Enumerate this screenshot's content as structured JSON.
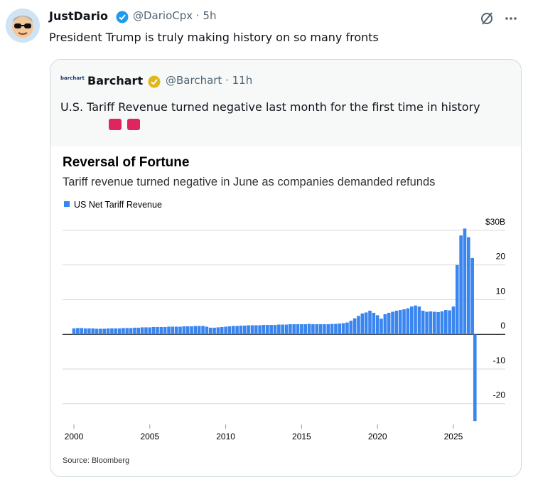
{
  "tweet": {
    "name": "JustDario",
    "handle_time": "@DarioCpx · 5h",
    "text": "President Trump is truly making history on so many fronts"
  },
  "quote": {
    "logo": "barchart",
    "name": "Barchart",
    "handle_time": "@Barchart · 11h",
    "text": "U.S. Tariff Revenue turned negative last month for the first time in history"
  },
  "chart_data": {
    "type": "bar",
    "title": "Reversal of Fortune",
    "subtitle": "Tariff revenue turned negative in June as companies demanded refunds",
    "source": "Source: Bloomberg",
    "x": [
      2000,
      2000.25,
      2000.5,
      2000.75,
      2001,
      2001.25,
      2001.5,
      2001.75,
      2002,
      2002.25,
      2002.5,
      2002.75,
      2003,
      2003.25,
      2003.5,
      2003.75,
      2004,
      2004.25,
      2004.5,
      2004.75,
      2005,
      2005.25,
      2005.5,
      2005.75,
      2006,
      2006.25,
      2006.5,
      2006.75,
      2007,
      2007.25,
      2007.5,
      2007.75,
      2008,
      2008.25,
      2008.5,
      2008.75,
      2009,
      2009.25,
      2009.5,
      2009.75,
      2010,
      2010.25,
      2010.5,
      2010.75,
      2011,
      2011.25,
      2011.5,
      2011.75,
      2012,
      2012.25,
      2012.5,
      2012.75,
      2013,
      2013.25,
      2013.5,
      2013.75,
      2014,
      2014.25,
      2014.5,
      2014.75,
      2015,
      2015.25,
      2015.5,
      2015.75,
      2016,
      2016.25,
      2016.5,
      2016.75,
      2017,
      2017.25,
      2017.5,
      2017.75,
      2018,
      2018.25,
      2018.5,
      2018.75,
      2019,
      2019.25,
      2019.5,
      2019.75,
      2020,
      2020.25,
      2020.5,
      2020.75,
      2021,
      2021.25,
      2021.5,
      2021.75,
      2022,
      2022.25,
      2022.5,
      2022.75,
      2023,
      2023.25,
      2023.5,
      2023.75,
      2024,
      2024.25,
      2024.5,
      2024.75,
      2025,
      2025.25,
      2025.5,
      2025.75,
      2026,
      2026.25,
      2026.42
    ],
    "series": [
      {
        "name": "US Net Tariff Revenue",
        "color": "#3a86f0",
        "values": [
          1.7,
          1.8,
          1.8,
          1.7,
          1.7,
          1.7,
          1.6,
          1.6,
          1.6,
          1.7,
          1.7,
          1.7,
          1.7,
          1.8,
          1.8,
          1.8,
          1.9,
          1.9,
          2.0,
          2.0,
          2.0,
          2.1,
          2.1,
          2.1,
          2.1,
          2.2,
          2.2,
          2.2,
          2.2,
          2.3,
          2.3,
          2.3,
          2.4,
          2.4,
          2.4,
          2.2,
          1.9,
          1.9,
          2.0,
          2.1,
          2.2,
          2.3,
          2.4,
          2.4,
          2.5,
          2.5,
          2.6,
          2.6,
          2.6,
          2.6,
          2.7,
          2.7,
          2.7,
          2.7,
          2.8,
          2.8,
          2.8,
          2.9,
          2.9,
          2.9,
          2.9,
          2.9,
          3.0,
          2.9,
          2.9,
          2.9,
          2.9,
          2.9,
          3.0,
          3.0,
          3.1,
          3.2,
          3.4,
          3.9,
          4.6,
          5.3,
          6.0,
          6.3,
          6.8,
          6.2,
          5.5,
          4.5,
          5.8,
          6.2,
          6.5,
          6.8,
          7.0,
          7.2,
          7.5,
          8.0,
          8.3,
          8.0,
          6.8,
          6.5,
          6.6,
          6.5,
          6.4,
          6.6,
          7.0,
          6.9,
          8.0,
          20.0,
          28.5,
          30.5,
          28.0,
          22.0,
          -25
        ]
      }
    ],
    "xlim": [
      1999.25,
      2028.42
    ],
    "xticks": [
      2000,
      2005,
      2010,
      2015,
      2020,
      2025
    ],
    "ylim": [
      -26,
      31
    ],
    "yticks": [
      {
        "value": 30,
        "label": "$30B"
      },
      20,
      10,
      0,
      -10,
      -20
    ],
    "grid": true
  }
}
